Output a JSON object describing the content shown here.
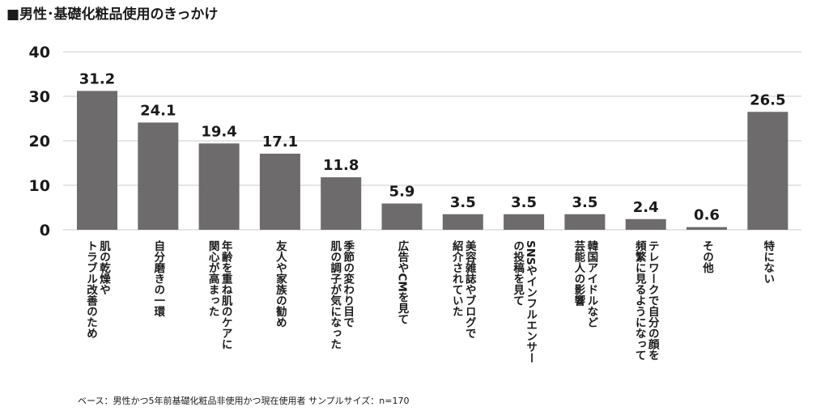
{
  "title": "■男性･基礎化粧品使用のきっかけ",
  "note": "ベース：男性かつ5年前基礎化粧品非使用かつ現在使用者 サンプルサイズ：n=170",
  "colors": {
    "bar": "#6d6b6b",
    "grid": "#cccccc",
    "text": "#1a1a1a"
  },
  "chart_data": {
    "type": "bar",
    "categories": [
      "肌の乾燥やトラブル改善のため",
      "自分磨きの一環",
      "年齢を重ね肌のケアに関心が高まった",
      "友人や家族の勧め",
      "季節の変わり目で肌の調子が気になった",
      "広告やCMを見て",
      "美容雑誌やブログで紹介されていた",
      "SNSやインフルエンサーの投稿を見て",
      "韓国アイドルなど芸能人の影響",
      "テレワークで自分の顔を頻繁に見るようになって",
      "その他",
      "特にない"
    ],
    "label_columns": [
      [
        "肌の乾燥や",
        "トラブル改善のため"
      ],
      [
        "自分磨きの一環"
      ],
      [
        "年齢を重ね肌のケアに",
        "関心が高まった"
      ],
      [
        "友人や家族の勧め"
      ],
      [
        "季節の変わり目で",
        "肌の調子が気になった"
      ],
      [
        "広告やCMを見て"
      ],
      [
        "美容雑誌やブログで",
        "紹介されていた"
      ],
      [
        "SNSやインフルエンサー",
        "の投稿を見て"
      ],
      [
        "韓国アイドルなど",
        "芸能人の影響"
      ],
      [
        "テレワークで自分の顔を",
        "頻繁に見るようになって"
      ],
      [
        "その他"
      ],
      [
        "特にない"
      ]
    ],
    "values": [
      31.2,
      24.1,
      19.4,
      17.1,
      11.8,
      5.9,
      3.5,
      3.5,
      3.5,
      2.4,
      0.6,
      26.5
    ],
    "value_labels": [
      "31.2",
      "24.1",
      "19.4",
      "17.1",
      "11.8",
      "5.9",
      "3.5",
      "3.5",
      "3.5",
      "2.4",
      "0.6",
      "26.5"
    ],
    "yticks": [
      "0",
      "10",
      "20",
      "30",
      "40"
    ],
    "ylim": [
      0,
      40
    ],
    "grid": true
  }
}
